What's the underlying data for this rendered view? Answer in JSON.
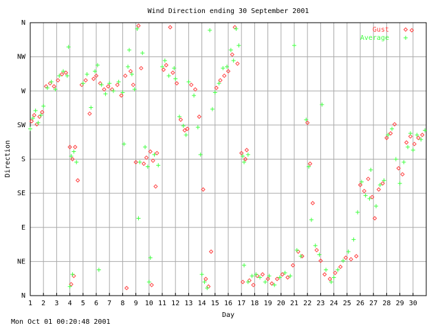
{
  "footer_timestamp": "Mon Oct 01 00:20:48 2001",
  "chart_data": {
    "type": "scatter",
    "title": "Wind Direction ending 30 September 2001",
    "xlabel": "Day",
    "ylabel": "Direction",
    "xlim": [
      1,
      31
    ],
    "ylim": [
      0,
      360
    ],
    "x_ticks": [
      1,
      2,
      3,
      4,
      5,
      6,
      7,
      8,
      9,
      10,
      11,
      12,
      13,
      14,
      15,
      16,
      17,
      18,
      19,
      20,
      21,
      22,
      23,
      24,
      25,
      26,
      27,
      28,
      29,
      30
    ],
    "y_ticks": [
      {
        "value": 0,
        "label": "N"
      },
      {
        "value": 45,
        "label": "NE"
      },
      {
        "value": 90,
        "label": "E"
      },
      {
        "value": 135,
        "label": "SE"
      },
      {
        "value": 180,
        "label": "S"
      },
      {
        "value": 225,
        "label": "SW"
      },
      {
        "value": 270,
        "label": "W"
      },
      {
        "value": 315,
        "label": "NW"
      },
      {
        "value": 360,
        "label": "N"
      }
    ],
    "grid": true,
    "legend_position": "top-right",
    "series": [
      {
        "name": "Gust",
        "color": "#ff4040",
        "marker": "diamond",
        "points": [
          [
            1.1,
            230
          ],
          [
            1.3,
            238
          ],
          [
            1.5,
            226
          ],
          [
            1.7,
            236
          ],
          [
            1.9,
            242
          ],
          [
            2.2,
            276
          ],
          [
            2.5,
            280
          ],
          [
            2.8,
            276
          ],
          [
            3.1,
            284
          ],
          [
            3.4,
            292
          ],
          [
            3.7,
            294
          ],
          [
            4.0,
            196
          ],
          [
            4.2,
            180
          ],
          [
            4.4,
            196
          ],
          [
            4.6,
            152
          ],
          [
            4.1,
            15
          ],
          [
            4.3,
            26
          ],
          [
            4.9,
            278
          ],
          [
            5.2,
            284
          ],
          [
            5.5,
            240
          ],
          [
            5.8,
            286
          ],
          [
            6.0,
            290
          ],
          [
            6.3,
            280
          ],
          [
            6.6,
            272
          ],
          [
            6.9,
            276
          ],
          [
            7.2,
            272
          ],
          [
            7.6,
            278
          ],
          [
            7.9,
            264
          ],
          [
            8.2,
            290
          ],
          [
            8.6,
            296
          ],
          [
            8.8,
            278
          ],
          [
            8.3,
            10
          ],
          [
            9.0,
            176
          ],
          [
            9.2,
            356
          ],
          [
            9.4,
            300
          ],
          [
            9.6,
            174
          ],
          [
            9.8,
            182
          ],
          [
            10.1,
            190
          ],
          [
            10.3,
            178
          ],
          [
            10.5,
            144
          ],
          [
            10.2,
            14
          ],
          [
            10.6,
            188
          ],
          [
            11.1,
            298
          ],
          [
            11.3,
            304
          ],
          [
            11.6,
            354
          ],
          [
            11.8,
            294
          ],
          [
            12.1,
            280
          ],
          [
            12.4,
            232
          ],
          [
            12.7,
            218
          ],
          [
            12.9,
            220
          ],
          [
            13.2,
            278
          ],
          [
            13.5,
            272
          ],
          [
            13.8,
            236
          ],
          [
            14.1,
            140
          ],
          [
            14.3,
            22
          ],
          [
            14.5,
            12
          ],
          [
            14.7,
            58
          ],
          [
            15.1,
            274
          ],
          [
            15.4,
            284
          ],
          [
            15.7,
            290
          ],
          [
            16.0,
            296
          ],
          [
            16.3,
            318
          ],
          [
            16.5,
            354
          ],
          [
            16.7,
            306
          ],
          [
            17.0,
            188
          ],
          [
            17.3,
            180
          ],
          [
            17.4,
            192
          ],
          [
            17.1,
            18
          ],
          [
            17.6,
            20
          ],
          [
            17.9,
            14
          ],
          [
            18.2,
            26
          ],
          [
            18.6,
            28
          ],
          [
            19.0,
            22
          ],
          [
            19.3,
            16
          ],
          [
            19.7,
            22
          ],
          [
            20.1,
            28
          ],
          [
            20.5,
            24
          ],
          [
            20.9,
            40
          ],
          [
            21.3,
            58
          ],
          [
            21.6,
            52
          ],
          [
            22.0,
            228
          ],
          [
            22.2,
            174
          ],
          [
            22.4,
            122
          ],
          [
            22.7,
            60
          ],
          [
            23.0,
            46
          ],
          [
            23.3,
            28
          ],
          [
            23.7,
            22
          ],
          [
            24.1,
            30
          ],
          [
            24.5,
            38
          ],
          [
            24.9,
            50
          ],
          [
            25.3,
            48
          ],
          [
            25.7,
            52
          ],
          [
            26.0,
            146
          ],
          [
            26.3,
            138
          ],
          [
            26.6,
            154
          ],
          [
            26.9,
            130
          ],
          [
            27.1,
            102
          ],
          [
            27.4,
            140
          ],
          [
            27.7,
            148
          ],
          [
            28.0,
            208
          ],
          [
            28.3,
            214
          ],
          [
            28.6,
            226
          ],
          [
            28.9,
            168
          ],
          [
            29.2,
            160
          ],
          [
            29.5,
            202
          ],
          [
            29.8,
            210
          ],
          [
            30.1,
            200
          ],
          [
            30.4,
            208
          ],
          [
            30.7,
            212
          ],
          [
            29.9,
            350
          ]
        ]
      },
      {
        "name": "Average",
        "color": "#40ff40",
        "marker": "plus",
        "points": [
          [
            1.0,
            220
          ],
          [
            1.2,
            234
          ],
          [
            1.4,
            244
          ],
          [
            1.6,
            228
          ],
          [
            1.8,
            238
          ],
          [
            2.0,
            250
          ],
          [
            2.3,
            274
          ],
          [
            2.6,
            282
          ],
          [
            2.9,
            272
          ],
          [
            3.2,
            290
          ],
          [
            3.5,
            296
          ],
          [
            3.8,
            290
          ],
          [
            3.9,
            328
          ],
          [
            4.1,
            184
          ],
          [
            4.3,
            190
          ],
          [
            4.5,
            176
          ],
          [
            4.2,
            28
          ],
          [
            4.0,
            12
          ],
          [
            5.0,
            280
          ],
          [
            5.3,
            292
          ],
          [
            5.6,
            248
          ],
          [
            5.9,
            296
          ],
          [
            6.1,
            304
          ],
          [
            6.4,
            278
          ],
          [
            6.7,
            266
          ],
          [
            6.2,
            34
          ],
          [
            7.0,
            280
          ],
          [
            7.3,
            270
          ],
          [
            7.7,
            282
          ],
          [
            8.0,
            268
          ],
          [
            8.1,
            200
          ],
          [
            8.4,
            302
          ],
          [
            8.7,
            292
          ],
          [
            8.9,
            272
          ],
          [
            8.5,
            324
          ],
          [
            9.1,
            352
          ],
          [
            9.3,
            176
          ],
          [
            9.5,
            320
          ],
          [
            9.7,
            196
          ],
          [
            9.9,
            170
          ],
          [
            10.0,
            18
          ],
          [
            10.4,
            186
          ],
          [
            10.7,
            172
          ],
          [
            9.2,
            102
          ],
          [
            10.1,
            50
          ],
          [
            11.0,
            302
          ],
          [
            11.2,
            310
          ],
          [
            11.5,
            290
          ],
          [
            11.9,
            300
          ],
          [
            12.0,
            286
          ],
          [
            12.3,
            236
          ],
          [
            12.6,
            224
          ],
          [
            12.8,
            212
          ],
          [
            13.0,
            282
          ],
          [
            13.4,
            264
          ],
          [
            13.7,
            222
          ],
          [
            13.9,
            186
          ],
          [
            14.0,
            28
          ],
          [
            14.2,
            18
          ],
          [
            14.4,
            10
          ],
          [
            14.6,
            350
          ],
          [
            14.8,
            246
          ],
          [
            15.0,
            268
          ],
          [
            15.3,
            280
          ],
          [
            15.6,
            300
          ],
          [
            15.9,
            302
          ],
          [
            16.2,
            324
          ],
          [
            16.4,
            310
          ],
          [
            16.6,
            352
          ],
          [
            16.8,
            330
          ],
          [
            17.1,
            184
          ],
          [
            17.2,
            176
          ],
          [
            17.5,
            186
          ],
          [
            17.2,
            40
          ],
          [
            17.5,
            18
          ],
          [
            17.8,
            26
          ],
          [
            18.1,
            28
          ],
          [
            18.4,
            24
          ],
          [
            18.8,
            18
          ],
          [
            19.1,
            26
          ],
          [
            19.5,
            14
          ],
          [
            19.9,
            24
          ],
          [
            20.3,
            30
          ],
          [
            20.7,
            26
          ],
          [
            21.0,
            330
          ],
          [
            21.2,
            60
          ],
          [
            21.5,
            52
          ],
          [
            21.9,
            232
          ],
          [
            22.1,
            170
          ],
          [
            22.3,
            100
          ],
          [
            22.6,
            66
          ],
          [
            22.9,
            54
          ],
          [
            23.1,
            252
          ],
          [
            23.4,
            34
          ],
          [
            23.8,
            18
          ],
          [
            24.0,
            24
          ],
          [
            24.3,
            34
          ],
          [
            24.7,
            46
          ],
          [
            25.1,
            58
          ],
          [
            25.5,
            74
          ],
          [
            25.8,
            110
          ],
          [
            26.1,
            150
          ],
          [
            26.4,
            132
          ],
          [
            26.7,
            128
          ],
          [
            26.8,
            166
          ],
          [
            27.2,
            118
          ],
          [
            27.5,
            146
          ],
          [
            27.8,
            152
          ],
          [
            28.1,
            212
          ],
          [
            28.4,
            220
          ],
          [
            28.7,
            180
          ],
          [
            29.0,
            148
          ],
          [
            29.3,
            176
          ],
          [
            29.6,
            196
          ],
          [
            29.8,
            214
          ],
          [
            30.0,
            192
          ],
          [
            30.3,
            212
          ],
          [
            30.6,
            206
          ],
          [
            30.9,
            218
          ]
        ]
      }
    ]
  }
}
